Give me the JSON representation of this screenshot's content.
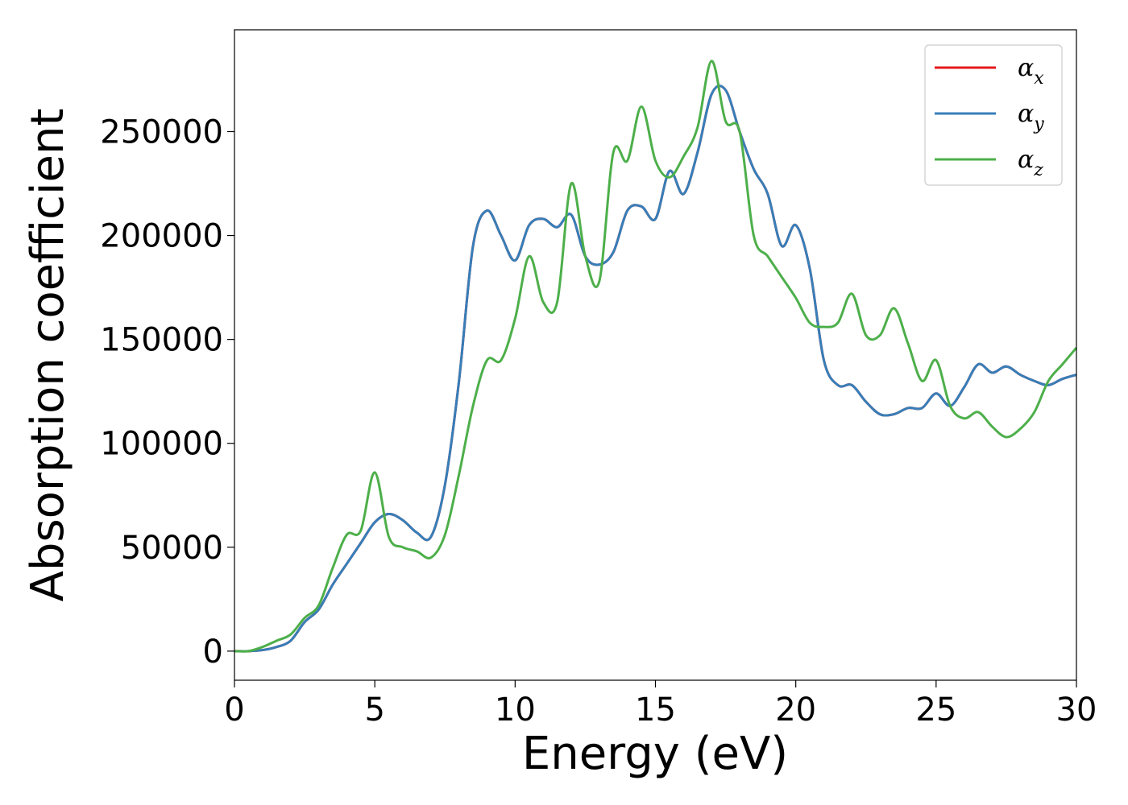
{
  "chart_data": {
    "type": "line",
    "title": "",
    "xlabel": "Energy (eV)",
    "ylabel": "Absorption coefficient",
    "xlim": [
      0,
      30
    ],
    "ylim": [
      -14000,
      299000
    ],
    "xticks": [
      "0",
      "5",
      "10",
      "15",
      "20",
      "25",
      "30"
    ],
    "xtick_values": [
      0,
      5,
      10,
      15,
      20,
      25,
      30
    ],
    "yticks": [
      "0",
      "50000",
      "100000",
      "150000",
      "200000",
      "250000"
    ],
    "ytick_values": [
      0,
      50000,
      100000,
      150000,
      200000,
      250000
    ],
    "grid": false,
    "legend": {
      "position": "top-right",
      "entries": [
        {
          "base": "α",
          "sub": "x",
          "color": "#e41a1c"
        },
        {
          "base": "α",
          "sub": "y",
          "color": "#377eb8"
        },
        {
          "base": "α",
          "sub": "z",
          "color": "#4daf4a"
        }
      ]
    },
    "series": [
      {
        "name": "αx",
        "color": "#e41a1c",
        "x": [
          0,
          0.5,
          1,
          1.5,
          2,
          2.5,
          3,
          3.5,
          4,
          4.5,
          5,
          5.5,
          6,
          6.5,
          7,
          7.5,
          8,
          8.5,
          9,
          9.5,
          10,
          10.5,
          11,
          11.5,
          12,
          12.5,
          13,
          13.5,
          14,
          14.5,
          15,
          15.5,
          16,
          16.5,
          17,
          17.5,
          18,
          18.5,
          19,
          19.5,
          20,
          20.5,
          21,
          21.5,
          22,
          22.5,
          23,
          23.5,
          24,
          24.5,
          25,
          25.5,
          26,
          26.5,
          27,
          27.5,
          28,
          28.5,
          29,
          29.5,
          30
        ],
        "y": [
          0,
          0,
          500,
          2000,
          5000,
          14000,
          20000,
          32000,
          42000,
          52000,
          62000,
          66000,
          63000,
          57000,
          55000,
          80000,
          130000,
          195000,
          212000,
          200000,
          188000,
          205000,
          208000,
          204000,
          210000,
          190000,
          186000,
          192000,
          212000,
          214000,
          208000,
          231000,
          220000,
          240000,
          268000,
          270000,
          250000,
          232000,
          220000,
          195000,
          205000,
          184000,
          140000,
          128000,
          128000,
          120000,
          114000,
          114000,
          117000,
          117000,
          124000,
          118000,
          127000,
          138000,
          134000,
          137000,
          133000,
          130000,
          128000,
          131000,
          133000
        ]
      },
      {
        "name": "αy",
        "color": "#377eb8",
        "x": [
          0,
          0.5,
          1,
          1.5,
          2,
          2.5,
          3,
          3.5,
          4,
          4.5,
          5,
          5.5,
          6,
          6.5,
          7,
          7.5,
          8,
          8.5,
          9,
          9.5,
          10,
          10.5,
          11,
          11.5,
          12,
          12.5,
          13,
          13.5,
          14,
          14.5,
          15,
          15.5,
          16,
          16.5,
          17,
          17.5,
          18,
          18.5,
          19,
          19.5,
          20,
          20.5,
          21,
          21.5,
          22,
          22.5,
          23,
          23.5,
          24,
          24.5,
          25,
          25.5,
          26,
          26.5,
          27,
          27.5,
          28,
          28.5,
          29,
          29.5,
          30
        ],
        "y": [
          0,
          0,
          500,
          2000,
          5000,
          14000,
          20000,
          32000,
          42000,
          52000,
          62000,
          66000,
          63000,
          57000,
          55000,
          80000,
          130000,
          195000,
          212000,
          200000,
          188000,
          205000,
          208000,
          204000,
          210000,
          190000,
          186000,
          192000,
          212000,
          214000,
          208000,
          231000,
          220000,
          240000,
          268000,
          270000,
          250000,
          232000,
          220000,
          195000,
          205000,
          184000,
          140000,
          128000,
          128000,
          120000,
          114000,
          114000,
          117000,
          117000,
          124000,
          118000,
          127000,
          138000,
          134000,
          137000,
          133000,
          130000,
          128000,
          131000,
          133000
        ]
      },
      {
        "name": "αz",
        "color": "#4daf4a",
        "x": [
          0,
          0.5,
          1,
          1.5,
          2,
          2.5,
          3,
          3.5,
          4,
          4.5,
          5,
          5.5,
          6,
          6.5,
          7,
          7.5,
          8,
          8.5,
          9,
          9.5,
          10,
          10.5,
          11,
          11.5,
          12,
          12.5,
          13,
          13.5,
          14,
          14.5,
          15,
          15.5,
          16,
          16.5,
          17,
          17.5,
          18,
          18.5,
          19,
          19.5,
          20,
          20.5,
          21,
          21.5,
          22,
          22.5,
          23,
          23.5,
          24,
          24.5,
          25,
          25.5,
          26,
          26.5,
          27,
          27.5,
          28,
          28.5,
          29,
          29.5,
          30
        ],
        "y": [
          0,
          0,
          2000,
          5000,
          8000,
          16000,
          22000,
          40000,
          56000,
          58000,
          86000,
          55000,
          50000,
          48000,
          45000,
          56000,
          85000,
          118000,
          140000,
          140000,
          160000,
          190000,
          168000,
          168000,
          225000,
          190000,
          178000,
          240000,
          236000,
          262000,
          236000,
          228000,
          238000,
          252000,
          284000,
          255000,
          250000,
          200000,
          190000,
          180000,
          170000,
          158000,
          156000,
          158000,
          172000,
          152000,
          152000,
          165000,
          148000,
          130000,
          140000,
          118000,
          112000,
          115000,
          108000,
          103000,
          107000,
          115000,
          130000,
          138000,
          146000
        ]
      }
    ]
  }
}
